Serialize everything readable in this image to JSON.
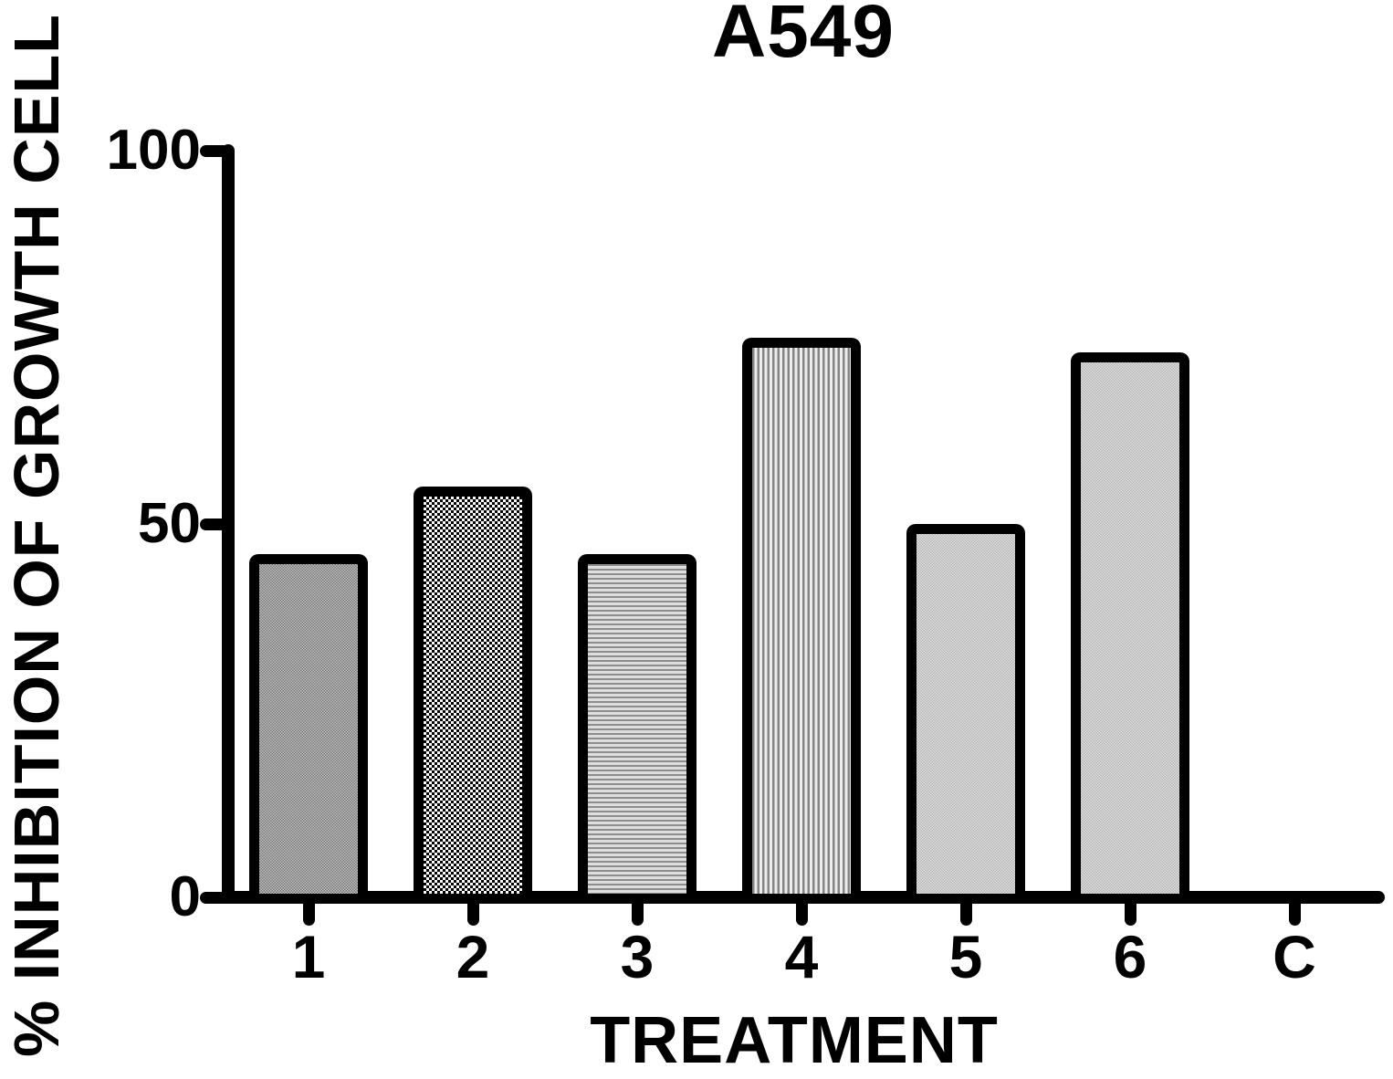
{
  "page": {
    "background_color": "#ffffff",
    "ink_color": "#000000"
  },
  "chart_data": {
    "type": "bar",
    "title": "A549",
    "xlabel": "TREATMENT",
    "ylabel": "% INHIBITION OF GROWTH CELL",
    "categories": [
      "1",
      "2",
      "3",
      "4",
      "5",
      "6",
      "C"
    ],
    "values": [
      46,
      55,
      46,
      75,
      50,
      73,
      0
    ],
    "bar_patterns": [
      "fine-checker-gray",
      "checker-black-white",
      "horizontal-lines",
      "vertical-lines",
      "fine-checker-light",
      "fine-checker-light",
      null
    ],
    "bar_border_color": "#000000",
    "ylim": [
      0,
      100
    ],
    "yticks": [
      0,
      50,
      100
    ],
    "ytick_labels": [
      "0",
      "50",
      "100"
    ],
    "grid": false,
    "legend": false
  }
}
